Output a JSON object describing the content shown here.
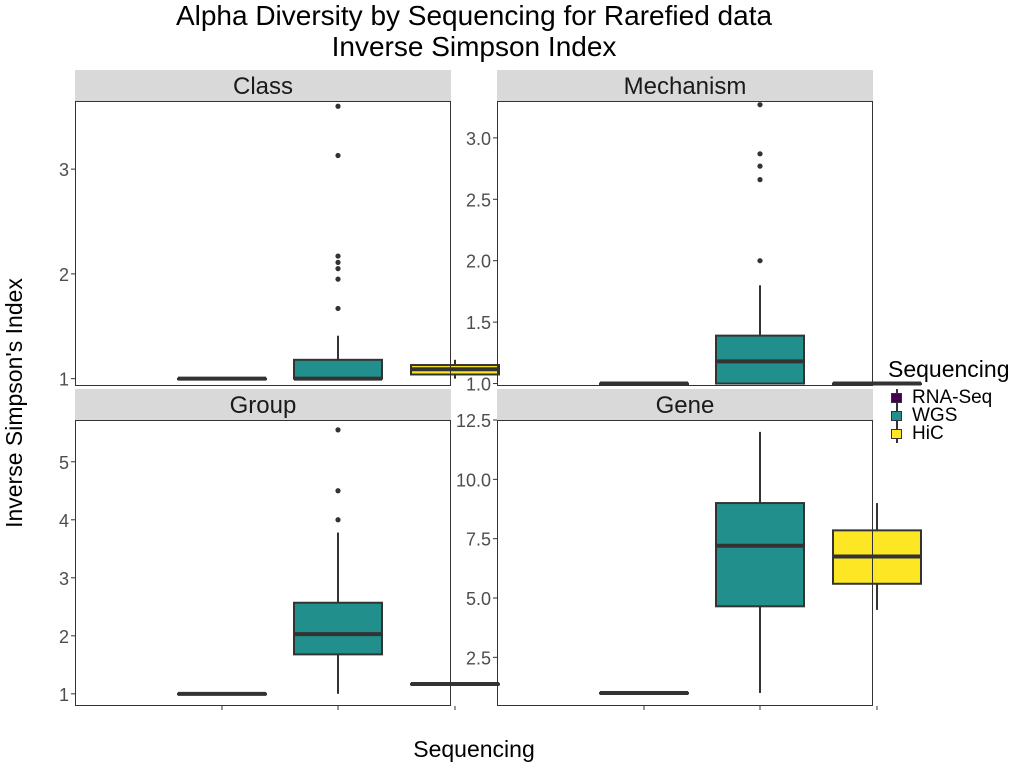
{
  "title": {
    "line1": "Alpha Diversity by Sequencing for Rarefied data",
    "line2": "Inverse Simpson Index"
  },
  "legend": {
    "title": "Sequencing",
    "items": [
      {
        "label": "RNA-Seq",
        "color": "#440154"
      },
      {
        "label": "WGS",
        "color": "#21908C"
      },
      {
        "label": "HiC",
        "color": "#FDE725"
      }
    ]
  },
  "chart_data": {
    "type": "boxplot",
    "xlabel": "Sequencing",
    "ylabel": "Inverse Simpson's Index",
    "categories": [
      "RNA-Seq",
      "WGS",
      "HiC"
    ],
    "x_tick_labels_shown": false,
    "grid": false,
    "legend_position": "right",
    "panels": [
      {
        "name": "Class",
        "ylim": [
          0.93,
          3.65
        ],
        "yticks": [
          1,
          2,
          3
        ],
        "ytick_labels": [
          "1",
          "2",
          "3"
        ],
        "boxes": [
          {
            "category": "RNA-Seq",
            "min": 1.0,
            "q1": 1.0,
            "median": 1.0,
            "q3": 1.0,
            "max": 1.0,
            "outliers": []
          },
          {
            "category": "WGS",
            "min": 1.0,
            "q1": 1.0,
            "median": 1.0,
            "q3": 1.18,
            "max": 1.41,
            "outliers": [
              1.67,
              1.95,
              2.05,
              2.11,
              2.17,
              3.13,
              3.6
            ]
          },
          {
            "category": "HiC",
            "min": 1.0,
            "q1": 1.04,
            "median": 1.09,
            "q3": 1.13,
            "max": 1.18,
            "outliers": []
          }
        ]
      },
      {
        "name": "Mechanism",
        "ylim": [
          0.98,
          3.3
        ],
        "yticks": [
          1.0,
          1.5,
          2.0,
          2.5,
          3.0
        ],
        "ytick_labels": [
          "1.0",
          "1.5",
          "2.0",
          "2.5",
          "3.0"
        ],
        "boxes": [
          {
            "category": "RNA-Seq",
            "min": 1.0,
            "q1": 1.0,
            "median": 1.0,
            "q3": 1.0,
            "max": 1.0,
            "outliers": []
          },
          {
            "category": "WGS",
            "min": 1.0,
            "q1": 1.0,
            "median": 1.18,
            "q3": 1.39,
            "max": 1.8,
            "outliers": [
              2.0,
              2.66,
              2.77,
              2.87,
              3.27
            ]
          },
          {
            "category": "HiC",
            "min": 1.0,
            "q1": 1.0,
            "median": 1.0,
            "q3": 1.0,
            "max": 1.0,
            "outliers": []
          }
        ]
      },
      {
        "name": "Group",
        "ylim": [
          0.79,
          5.72
        ],
        "yticks": [
          1,
          2,
          3,
          4,
          5
        ],
        "ytick_labels": [
          "1",
          "2",
          "3",
          "4",
          "5"
        ],
        "boxes": [
          {
            "category": "RNA-Seq",
            "min": 1.0,
            "q1": 1.0,
            "median": 1.0,
            "q3": 1.0,
            "max": 1.0,
            "outliers": []
          },
          {
            "category": "WGS",
            "min": 1.0,
            "q1": 1.68,
            "median": 2.03,
            "q3": 2.57,
            "max": 3.78,
            "outliers": [
              4.0,
              4.5,
              5.55
            ]
          },
          {
            "category": "HiC",
            "min": 1.17,
            "q1": 1.17,
            "median": 1.17,
            "q3": 1.17,
            "max": 1.17,
            "outliers": []
          }
        ]
      },
      {
        "name": "Gene",
        "ylim": [
          0.45,
          12.5
        ],
        "yticks": [
          2.5,
          5.0,
          7.5,
          10.0,
          12.5
        ],
        "ytick_labels": [
          "2.5",
          "5.0",
          "7.5",
          "10.0",
          "12.5"
        ],
        "boxes": [
          {
            "category": "RNA-Seq",
            "min": 1.0,
            "q1": 1.0,
            "median": 1.0,
            "q3": 1.0,
            "max": 1.0,
            "outliers": []
          },
          {
            "category": "WGS",
            "min": 1.0,
            "q1": 4.65,
            "median": 7.2,
            "q3": 9.0,
            "max": 12.0,
            "outliers": []
          },
          {
            "category": "HiC",
            "min": 4.5,
            "q1": 5.6,
            "median": 6.75,
            "q3": 7.85,
            "max": 9.0,
            "outliers": []
          }
        ]
      }
    ]
  }
}
